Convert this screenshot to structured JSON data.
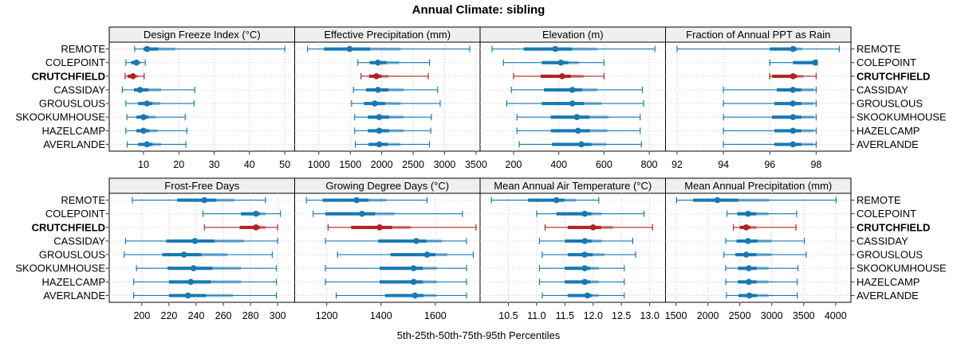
{
  "title": "Annual Climate: sibling",
  "xlabel": "5th-25th-50th-75th-95th Percentiles",
  "colors": {
    "normal": "#1878b4",
    "highlight": "#b22222",
    "grid": "#bdbdbd",
    "row_grid": "#c9c9c9",
    "strip_bg": "#efefef",
    "border": "#000000",
    "text": "#000000"
  },
  "chart_data": {
    "type": "dotplot-percentiles",
    "percentiles": [
      5,
      25,
      50,
      75,
      95
    ],
    "stations": [
      "REMOTE",
      "COLEPOINT",
      "CRUTCHFIELD",
      "CASSIDAY",
      "GROUSLOUS",
      "SKOOKUMHOUSE",
      "HAZELCAMP",
      "AVERLANDE"
    ],
    "highlight": "CRUTCHFIELD",
    "panels": [
      {
        "title": "Design Freeze Index (°C)",
        "row": 0,
        "col": 0,
        "xlim": [
          0.3,
          52.8
        ],
        "ticks": [
          10,
          20,
          30,
          40,
          50
        ],
        "tick_labels": [
          "10",
          "20",
          "30",
          "40",
          "50"
        ],
        "values": [
          [
            7.5,
            10,
            11,
            19,
            50
          ],
          [
            5,
            6.5,
            8,
            9.3,
            10.5
          ],
          [
            4.8,
            5.5,
            7,
            8.5,
            10.2
          ],
          [
            4,
            7.3,
            9,
            15,
            24.5
          ],
          [
            5,
            8.5,
            11,
            14.8,
            24.3
          ],
          [
            5.3,
            8,
            10,
            13.5,
            21.8
          ],
          [
            5,
            8,
            10,
            14,
            22.3
          ],
          [
            5.4,
            8.5,
            11,
            15,
            22
          ]
        ]
      },
      {
        "title": "Effective Precipitation (mm)",
        "row": 0,
        "col": 1,
        "xlim": [
          615,
          3565
        ],
        "ticks": [
          1000,
          1500,
          2000,
          2500,
          3000,
          3500
        ],
        "tick_labels": [
          "1000",
          "1500",
          "2000",
          "2500",
          "3000",
          "3500"
        ],
        "values": [
          [
            820,
            1080,
            1490,
            2300,
            3400
          ],
          [
            1620,
            1810,
            1940,
            2280,
            2760
          ],
          [
            1670,
            1800,
            1915,
            2110,
            2740
          ],
          [
            1550,
            1750,
            1940,
            2350,
            2890
          ],
          [
            1520,
            1720,
            1890,
            2300,
            2930
          ],
          [
            1570,
            1780,
            1960,
            2350,
            2790
          ],
          [
            1570,
            1780,
            1960,
            2350,
            2780
          ],
          [
            1580,
            1790,
            1960,
            2300,
            2760
          ]
        ]
      },
      {
        "title": "Elevation (m)",
        "row": 0,
        "col": 2,
        "xlim": [
          52,
          872
        ],
        "ticks": [
          200,
          400,
          600,
          800
        ],
        "tick_labels": [
          "200",
          "400",
          "600",
          "800"
        ],
        "values": [
          [
            105,
            245,
            385,
            570,
            825
          ],
          [
            155,
            325,
            410,
            490,
            600
          ],
          [
            200,
            320,
            415,
            510,
            600
          ],
          [
            190,
            335,
            460,
            570,
            770
          ],
          [
            170,
            325,
            460,
            590,
            775
          ],
          [
            215,
            365,
            480,
            620,
            760
          ],
          [
            215,
            365,
            485,
            615,
            760
          ],
          [
            225,
            370,
            500,
            610,
            765
          ]
        ]
      },
      {
        "title": "Fraction of Annual PPT as Rain",
        "row": 0,
        "col": 3,
        "xlim": [
          91.5,
          99.5
        ],
        "ticks": [
          92,
          94,
          96,
          98
        ],
        "tick_labels": [
          "92",
          "94",
          "96",
          "98"
        ],
        "values": [
          [
            92,
            96,
            97,
            97.4,
            99
          ],
          [
            96,
            97,
            97.95,
            98,
            98.05
          ],
          [
            96,
            96.1,
            97,
            97.45,
            98
          ],
          [
            94,
            96.3,
            97,
            97.9,
            98
          ],
          [
            94,
            96.2,
            97,
            97.9,
            98
          ],
          [
            94,
            96.1,
            97,
            97.9,
            98
          ],
          [
            94,
            96.2,
            97,
            97.9,
            98
          ],
          [
            94,
            96.2,
            97,
            97.9,
            98
          ]
        ]
      },
      {
        "title": "Frost-Free Days",
        "row": 1,
        "col": 0,
        "xlim": [
          176,
          312.5
        ],
        "ticks": [
          200,
          220,
          240,
          260,
          280,
          300
        ],
        "tick_labels": [
          "200",
          "220",
          "240",
          "260",
          "280",
          "300"
        ],
        "values": [
          [
            193,
            226,
            246,
            268,
            291
          ],
          [
            245,
            273,
            284,
            291,
            302
          ],
          [
            246,
            272,
            284,
            291,
            300
          ],
          [
            188,
            218,
            239,
            275,
            300
          ],
          [
            187,
            215,
            231,
            263,
            296
          ],
          [
            196,
            219,
            238,
            273,
            299
          ],
          [
            194,
            220,
            236,
            273,
            299
          ],
          [
            194,
            220,
            234,
            267,
            299
          ]
        ]
      },
      {
        "title": "Growing Degree Days (°C)",
        "row": 1,
        "col": 1,
        "xlim": [
          1082,
          1765
        ],
        "ticks": [
          1200,
          1400,
          1600
        ],
        "tick_labels": [
          "1200",
          "1400",
          "1600"
        ],
        "values": [
          [
            1125,
            1185,
            1310,
            1420,
            1570
          ],
          [
            1150,
            1195,
            1330,
            1450,
            1700
          ],
          [
            1205,
            1290,
            1395,
            1510,
            1750
          ],
          [
            1195,
            1390,
            1530,
            1625,
            1715
          ],
          [
            1240,
            1435,
            1570,
            1645,
            1740
          ],
          [
            1195,
            1395,
            1520,
            1605,
            1715
          ],
          [
            1195,
            1395,
            1520,
            1605,
            1715
          ],
          [
            1235,
            1415,
            1525,
            1605,
            1715
          ]
        ]
      },
      {
        "title": "Mean Annual Air Temperature (°C)",
        "row": 1,
        "col": 2,
        "xlim": [
          10.0,
          13.28
        ],
        "ticks": [
          10.5,
          11.0,
          11.5,
          12.0,
          12.5,
          13.0
        ],
        "tick_labels": [
          "10.5",
          "11.0",
          "11.5",
          "12.0",
          "12.5",
          "13.0"
        ],
        "values": [
          [
            10.2,
            10.85,
            11.35,
            11.7,
            12.1
          ],
          [
            11.0,
            11.35,
            11.85,
            12.15,
            12.9
          ],
          [
            11.15,
            11.55,
            12.0,
            12.35,
            13.05
          ],
          [
            11.05,
            11.5,
            11.85,
            12.15,
            12.7
          ],
          [
            11.1,
            11.55,
            11.85,
            12.2,
            12.75
          ],
          [
            11.05,
            11.5,
            11.85,
            12.1,
            12.55
          ],
          [
            11.05,
            11.5,
            11.85,
            12.1,
            12.55
          ],
          [
            11.1,
            11.55,
            11.9,
            12.1,
            12.55
          ]
        ]
      },
      {
        "title": "Mean Annual Precipitation (mm)",
        "row": 1,
        "col": 3,
        "xlim": [
          1337,
          4240
        ],
        "ticks": [
          1500,
          2000,
          2500,
          3000,
          3500,
          4000
        ],
        "tick_labels": [
          "1500",
          "2000",
          "2500",
          "3000",
          "3500",
          "4000"
        ],
        "values": [
          [
            1510,
            1770,
            2150,
            2960,
            4010
          ],
          [
            2300,
            2460,
            2630,
            2950,
            3390
          ],
          [
            2400,
            2500,
            2600,
            2760,
            3380
          ],
          [
            2280,
            2450,
            2630,
            3000,
            3510
          ],
          [
            2250,
            2430,
            2600,
            3000,
            3540
          ],
          [
            2280,
            2470,
            2640,
            2950,
            3410
          ],
          [
            2280,
            2470,
            2640,
            2950,
            3400
          ],
          [
            2290,
            2480,
            2650,
            2950,
            3400
          ]
        ]
      }
    ]
  }
}
